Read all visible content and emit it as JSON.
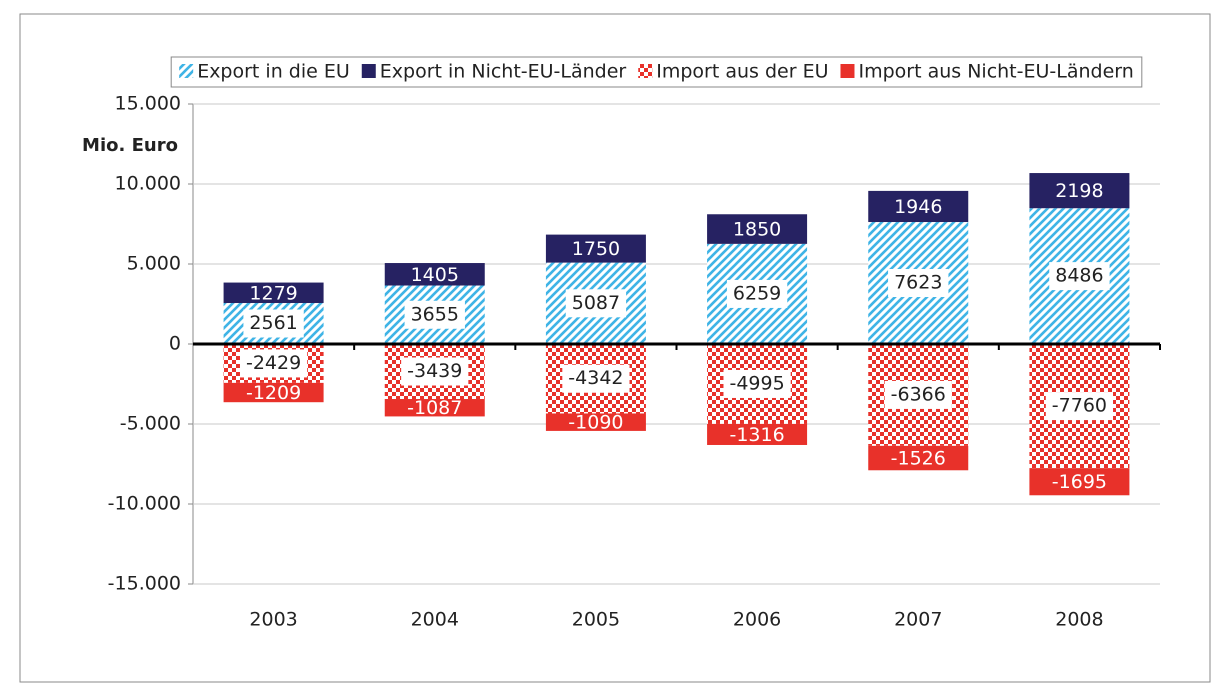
{
  "chart_data": {
    "type": "bar",
    "stacked": true,
    "y_label": "Mio. Euro",
    "categories": [
      "2003",
      "2004",
      "2005",
      "2006",
      "2007",
      "2008"
    ],
    "series": [
      {
        "name": "Export in die EU",
        "color": "#3fb4e6",
        "pattern": "hatch",
        "values": [
          2561,
          3655,
          5087,
          6259,
          7623,
          8486
        ]
      },
      {
        "name": "Export in Nicht-EU-Länder",
        "color": "#262262",
        "values": [
          1279,
          1405,
          1750,
          1850,
          1946,
          2198
        ]
      },
      {
        "name": "Import aus der EU",
        "color": "#e8312a",
        "pattern": "check",
        "values": [
          -2429,
          -3439,
          -4342,
          -4995,
          -6366,
          -7760
        ]
      },
      {
        "name": "Import aus Nicht-EU-Ländern",
        "color": "#e8312a",
        "values": [
          -1209,
          -1087,
          -1090,
          -1316,
          -1526,
          -1695
        ]
      }
    ],
    "ylim": [
      -15000,
      15000
    ],
    "yticks": [
      {
        "value": -15000,
        "label": "-15.000"
      },
      {
        "value": -10000,
        "label": "-10.000"
      },
      {
        "value": -5000,
        "label": "-5.000"
      },
      0,
      {
        "value": 5000,
        "label": "5.000"
      },
      {
        "value": 10000,
        "label": "10.000"
      },
      {
        "value": 15000,
        "label": "15.000"
      }
    ],
    "grid": true,
    "legend": "top"
  }
}
